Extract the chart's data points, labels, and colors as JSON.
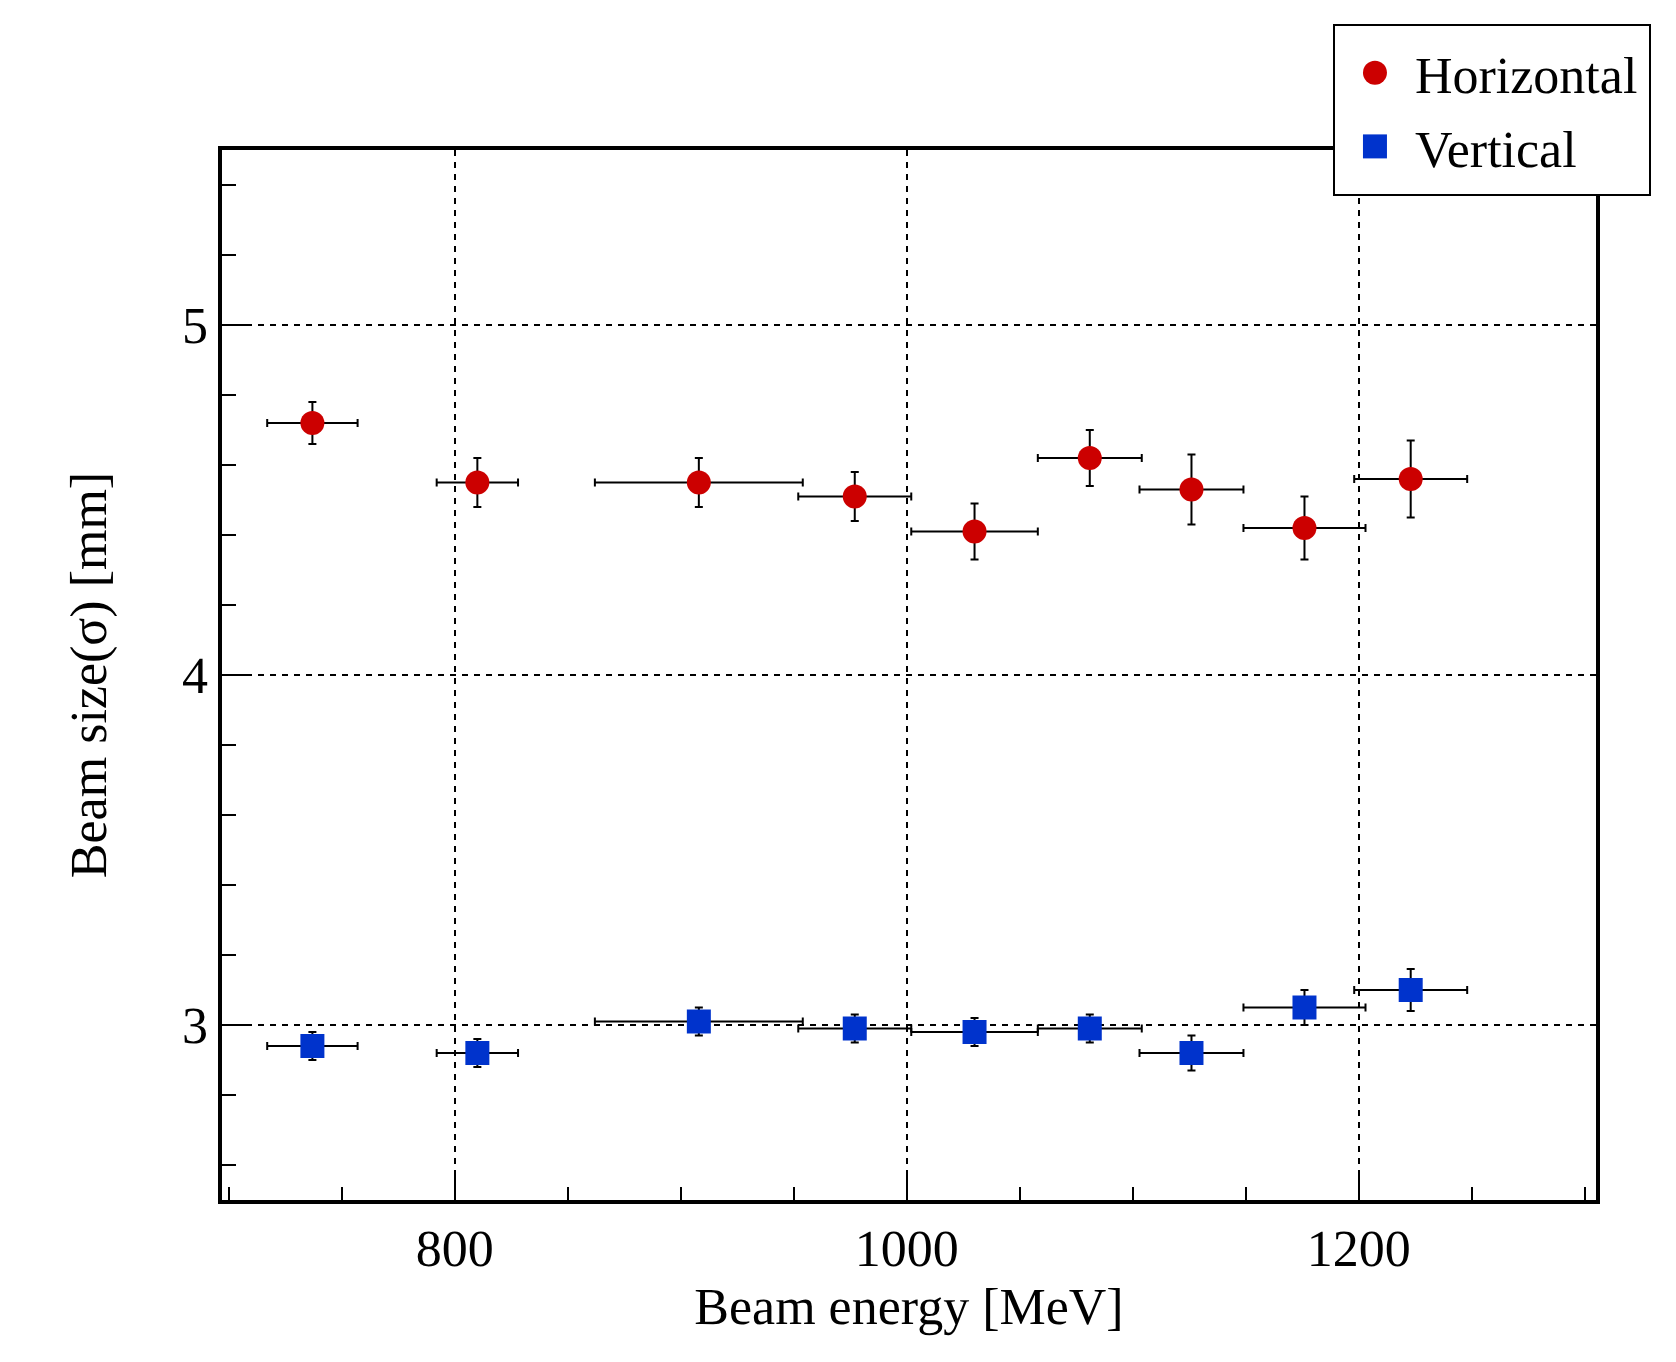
{
  "chart_data": {
    "type": "scatter",
    "xlabel": "Beam energy [MeV]",
    "ylabel": "Beam size(σ) [mm]",
    "xlim": [
      697,
      1305
    ],
    "xticks": [
      800,
      1000,
      1200
    ],
    "ylim": [
      2.5,
      5.5
    ],
    "yticks": [
      3,
      4,
      5
    ],
    "grid": true,
    "legend": "top right",
    "x": [
      737,
      810,
      908,
      977,
      1030,
      1081,
      1126,
      1176,
      1223
    ],
    "series": [
      {
        "name": "Horizontal",
        "color": "#cc0000",
        "marker": "circle",
        "values": [
          4.72,
          4.55,
          4.55,
          4.51,
          4.41,
          4.62,
          4.53,
          4.42,
          4.56
        ],
        "errors": [
          0.06,
          0.07,
          0.07,
          0.07,
          0.08,
          0.08,
          0.1,
          0.09,
          0.11
        ],
        "xerrors": [
          20,
          18,
          46,
          25,
          28,
          23,
          23,
          27,
          25
        ]
      },
      {
        "name": "Vertical",
        "color": "#0033cc",
        "marker": "square",
        "values": [
          2.94,
          2.92,
          3.01,
          2.99,
          2.98,
          2.99,
          2.92,
          3.05,
          3.1
        ],
        "errors": [
          0.04,
          0.04,
          0.04,
          0.04,
          0.04,
          0.04,
          0.05,
          0.05,
          0.06
        ],
        "xerrors": [
          20,
          18,
          46,
          25,
          28,
          23,
          23,
          27,
          25
        ]
      }
    ]
  }
}
